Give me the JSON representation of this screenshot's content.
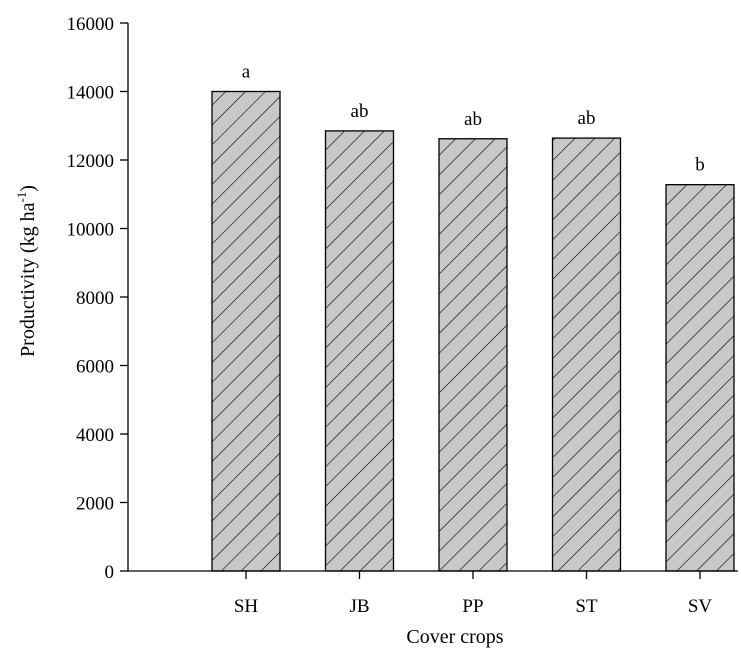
{
  "chart_data": {
    "type": "bar",
    "categories": [
      "SH",
      "JB",
      "PP",
      "ST",
      "SV"
    ],
    "values": [
      14000,
      12850,
      12620,
      12640,
      11280
    ],
    "significance_letters": [
      "a",
      "ab",
      "ab",
      "ab",
      "b"
    ],
    "xlabel": "Cover crops",
    "ylabel": {
      "text": "Productivity (kg ha",
      "superscript": "-1",
      "close": ")"
    },
    "ylim": [
      0,
      16000
    ],
    "yticks": [
      0,
      2000,
      4000,
      6000,
      8000,
      10000,
      12000,
      14000,
      16000
    ],
    "bar_fill": "#c8c8c8",
    "hatch_color": "#000000",
    "grid": false,
    "legend": "none"
  }
}
